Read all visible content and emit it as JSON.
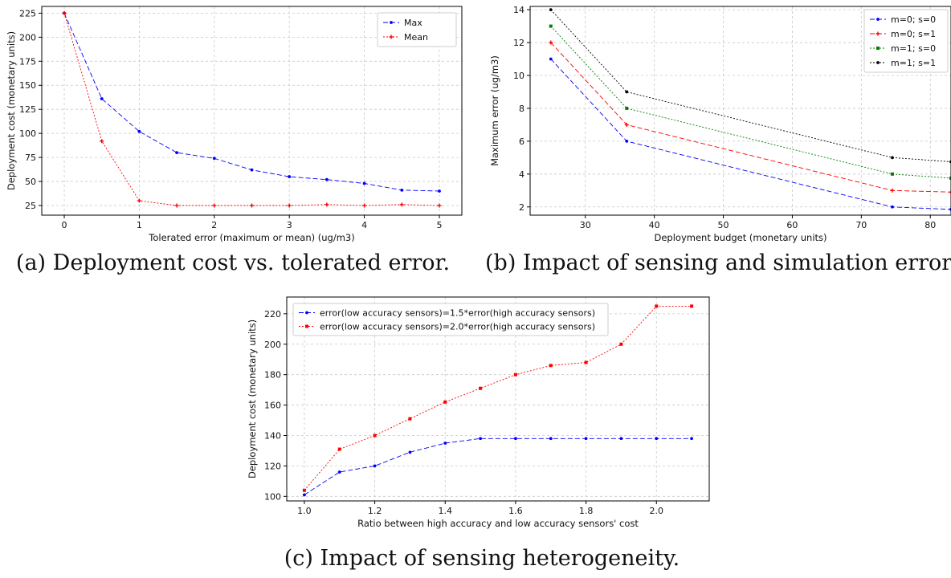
{
  "captions": {
    "a": "(a) Deployment cost vs. tolerated error.",
    "b": "(b) Impact of sensing and simulation errors.",
    "c": "(c) Impact of sensing heterogeneity."
  },
  "chart_data": [
    {
      "id": "a",
      "type": "line",
      "xlabel": "Tolerated error (maximum or mean) (ug/m3)",
      "ylabel": "Deployment cost (monetary units)",
      "xlim": [
        -0.3,
        5.3
      ],
      "ylim": [
        15,
        232
      ],
      "xticks": [
        0,
        1,
        2,
        3,
        4,
        5
      ],
      "yticks": [
        25,
        50,
        75,
        100,
        125,
        150,
        175,
        200,
        225
      ],
      "grid": true,
      "legend": "top-right",
      "series": [
        {
          "name": "Max",
          "color": "#0000ff",
          "x": [
            0,
            0.5,
            1,
            1.5,
            2,
            2.5,
            3,
            3.5,
            4,
            4.5,
            5
          ],
          "y": [
            225,
            136,
            102,
            80,
            74,
            62,
            55,
            52,
            48,
            41,
            40
          ]
        },
        {
          "name": "Mean",
          "color": "#ff0000",
          "x": [
            0,
            0.5,
            1,
            1.5,
            2,
            2.5,
            3,
            3.5,
            4,
            4.5,
            5
          ],
          "y": [
            225,
            92,
            30,
            25,
            25,
            25,
            25,
            26,
            25,
            26,
            25
          ]
        }
      ]
    },
    {
      "id": "b",
      "type": "line",
      "xlabel": "Deployment budget (monetary units)",
      "ylabel": "Maximum error (ug/m3)",
      "xlim": [
        22,
        83
      ],
      "ylim": [
        1.5,
        14.2
      ],
      "xticks": [
        30,
        40,
        50,
        60,
        70,
        80
      ],
      "yticks": [
        2,
        4,
        6,
        8,
        10,
        12,
        14
      ],
      "grid": true,
      "legend": "top-right",
      "series": [
        {
          "name": "m=0; s=0",
          "color": "#0000ff",
          "x": [
            25,
            36,
            74.5,
            83
          ],
          "y": [
            11,
            6,
            2,
            1.85
          ]
        },
        {
          "name": "m=0; s=1",
          "color": "#ff0000",
          "x": [
            25,
            36,
            74.5,
            83
          ],
          "y": [
            12,
            7,
            3,
            2.9
          ]
        },
        {
          "name": "m=1; s=0",
          "color": "#008000",
          "x": [
            25,
            36,
            74.5,
            83
          ],
          "y": [
            13,
            8,
            4,
            3.75
          ]
        },
        {
          "name": "m=1; s=1",
          "color": "#000000",
          "x": [
            25,
            36,
            74.5,
            83
          ],
          "y": [
            14,
            9,
            5,
            4.75
          ]
        }
      ]
    },
    {
      "id": "c",
      "type": "line",
      "xlabel": "Ratio between high accuracy and low accuracy sensors' cost",
      "ylabel": "Deployment cost (monetary units)",
      "xlim": [
        0.95,
        2.15
      ],
      "ylim": [
        97,
        231
      ],
      "xticks": [
        1.0,
        1.2,
        1.4,
        1.6,
        1.8,
        2.0
      ],
      "yticks": [
        100,
        120,
        140,
        160,
        180,
        200,
        220
      ],
      "grid": true,
      "legend": "top-left",
      "series": [
        {
          "name": "error(low accuracy sensors)=1.5*error(high accuracy sensors)",
          "color": "#0000ff",
          "x": [
            1.0,
            1.1,
            1.2,
            1.3,
            1.4,
            1.5,
            1.6,
            1.7,
            1.8,
            1.9,
            2.0,
            2.1
          ],
          "y": [
            101,
            116,
            120,
            129,
            135,
            138,
            138,
            138,
            138,
            138,
            138,
            138
          ]
        },
        {
          "name": "error(low accuracy sensors)=2.0*error(high accuracy sensors)",
          "color": "#ff0000",
          "x": [
            1.0,
            1.1,
            1.2,
            1.3,
            1.4,
            1.5,
            1.6,
            1.7,
            1.8,
            1.9,
            2.0,
            2.1
          ],
          "y": [
            104,
            131,
            140,
            151,
            162,
            171,
            180,
            186,
            188,
            200,
            225,
            225
          ]
        }
      ]
    }
  ]
}
